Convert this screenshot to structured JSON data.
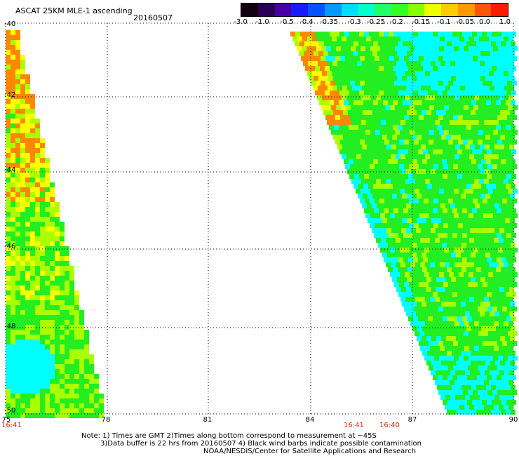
{
  "header": {
    "title": "ASCAT 25KM MLE-1 ascending",
    "date": "20160507"
  },
  "colorbar": {
    "labels": [
      "-3.0",
      "-1.0",
      "-0.5",
      "-0.4",
      "-0.35",
      "-0.3",
      "-0.25",
      "-0.2",
      "-0.15",
      "-0.1",
      "-0.05",
      "0.0",
      "1.0"
    ],
    "colors": [
      "#120012",
      "#2a0055",
      "#4800a8",
      "#1a1aff",
      "#0055ff",
      "#0099ff",
      "#00ddff",
      "#00ffcc",
      "#22ff66",
      "#33ff22",
      "#88ff00",
      "#eeff00",
      "#ffcc00",
      "#ff9900",
      "#ff5500",
      "#ff1a00"
    ]
  },
  "map": {
    "lon_range": [
      75,
      90
    ],
    "lat_range": [
      -50,
      -40
    ],
    "lon_ticks": [
      "75",
      "78",
      "81",
      "84",
      "87",
      "90"
    ],
    "lat_ticks": [
      "-40",
      "-42",
      "-44",
      "-46",
      "-48",
      "-50"
    ],
    "swath_times": [
      "16:41",
      "16:41",
      "16:40"
    ],
    "swath_colors": {
      "orange": "#ff8800",
      "yellow": "#ffff00",
      "lime": "#aaff00",
      "green": "#22ee22",
      "cyan": "#00ffff"
    }
  },
  "notes": {
    "line1": "Note: 1) Times are GMT 2)Times along bottom correspond to measurement at ~45S",
    "line2": "3)Data buffer is 22 hrs from 20160507 4) Black wind barbs indicate possible contamination",
    "line3": "NOAA/NESDIS/Center for Satellite Applications and Research"
  }
}
